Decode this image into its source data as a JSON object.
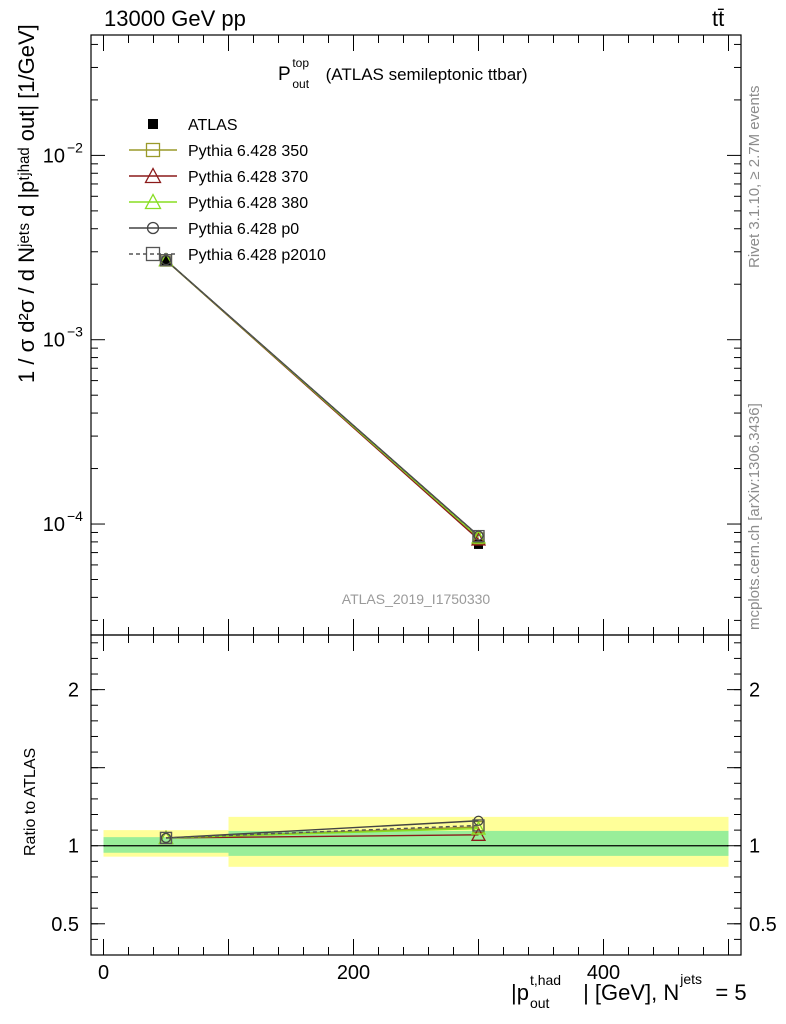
{
  "header": {
    "energy_label": "13000 GeV pp",
    "process_label": "tt̄"
  },
  "side_labels": {
    "rivet": "Rivet 3.1.10, ≥ 2.7M events",
    "mcplots": "mcplots.cern.ch [arXiv:1306.3436]"
  },
  "main_plot": {
    "title_main": "P",
    "title_sup": "top",
    "title_sub": "out",
    "title_rest": "(ATLAS semileptonic ttbar)",
    "ylabel": "1 / σ d²σ / d Nʲᵉᵗˢ d |pᵗʲʰᵃᵈ out| [1/GeV]",
    "watermark": "ATLAS_2019_I1750330"
  },
  "ratio_plot": {
    "ylabel": "Ratio to ATLAS"
  },
  "xaxis": {
    "label_main": "|p",
    "label_sup": "t,had",
    "label_sub": "out",
    "label_rest": "| [GeV], N",
    "label_sup2": "jets",
    "label_end": " = 5"
  },
  "legend": [
    {
      "name": "ATLAS",
      "color": "#000000",
      "marker": "filled-square",
      "dash": false
    },
    {
      "name": "Pythia 6.428 350",
      "color": "#9a9a2a",
      "marker": "open-square",
      "dash": false
    },
    {
      "name": "Pythia 6.428 370",
      "color": "#8b1a1a",
      "marker": "open-triangle",
      "dash": false
    },
    {
      "name": "Pythia 6.428 380",
      "color": "#88dd22",
      "marker": "open-triangle",
      "dash": false
    },
    {
      "name": "Pythia 6.428 p0",
      "color": "#444444",
      "marker": "open-circle",
      "dash": false
    },
    {
      "name": "Pythia 6.428 p2010",
      "color": "#555555",
      "marker": "open-square",
      "dash": true
    }
  ],
  "chart_data": [
    {
      "type": "line",
      "panel": "main",
      "yscale": "log",
      "xlim": [
        -10,
        510
      ],
      "ylim": [
        2.5e-05,
        0.045
      ],
      "x": [
        50,
        300
      ],
      "series": [
        {
          "name": "ATLAS",
          "values": [
            0.00268,
            7.75e-05
          ]
        },
        {
          "name": "Pythia 6.428 350",
          "values": [
            0.00269,
            8.35e-05
          ]
        },
        {
          "name": "Pythia 6.428 370",
          "values": [
            0.0027,
            8.25e-05
          ]
        },
        {
          "name": "Pythia 6.428 380",
          "values": [
            0.0027,
            8.45e-05
          ]
        },
        {
          "name": "Pythia 6.428 p0",
          "values": [
            0.0027,
            8.65e-05
          ]
        },
        {
          "name": "Pythia 6.428 p2010",
          "values": [
            0.0027,
            8.6e-05
          ]
        }
      ],
      "yticks": [
        0.0001,
        0.001,
        0.01
      ],
      "yticklabels": [
        {
          "base": "10",
          "exp": "−4"
        },
        {
          "base": "10",
          "exp": "−3"
        },
        {
          "base": "10",
          "exp": "−2"
        }
      ]
    },
    {
      "type": "line",
      "panel": "ratio",
      "xlim": [
        -10,
        510
      ],
      "ylim": [
        0.3,
        2.35
      ],
      "x": [
        50,
        300
      ],
      "band_green": [
        {
          "x0": 0,
          "x1": 100,
          "lo": 0.955,
          "hi": 1.055
        },
        {
          "x0": 100,
          "x1": 500,
          "lo": 0.935,
          "hi": 1.095
        }
      ],
      "band_yellow": [
        {
          "x0": 0,
          "x1": 100,
          "lo": 0.93,
          "hi": 1.1
        },
        {
          "x0": 100,
          "x1": 500,
          "lo": 0.865,
          "hi": 1.185
        }
      ],
      "series": [
        {
          "name": "Pythia 6.428 350",
          "values": [
            1.05,
            1.12
          ]
        },
        {
          "name": "Pythia 6.428 370",
          "values": [
            1.05,
            1.07
          ]
        },
        {
          "name": "Pythia 6.428 380",
          "values": [
            1.05,
            1.11
          ]
        },
        {
          "name": "Pythia 6.428 p0",
          "values": [
            1.05,
            1.16
          ]
        },
        {
          "name": "Pythia 6.428 p2010",
          "values": [
            1.05,
            1.13
          ]
        }
      ],
      "yticks": [
        0.5,
        1,
        2
      ],
      "yticklabels": [
        "0.5",
        "1",
        "2"
      ],
      "xticks": [
        0,
        200,
        400
      ],
      "xticklabels": [
        "0",
        "200",
        "400"
      ]
    }
  ]
}
